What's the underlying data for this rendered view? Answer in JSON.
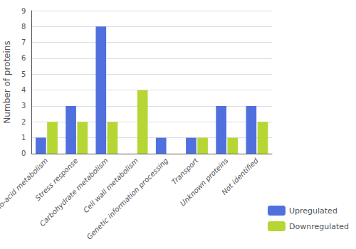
{
  "chart_data": {
    "type": "bar",
    "categories": [
      "Amino-acid metabolism",
      "Stress response",
      "Carbohydrate metabolism",
      "Cell wall metabolism",
      "Genetic information processing",
      "Transport",
      "Unknown proteins",
      "Not identified"
    ],
    "series": [
      {
        "name": "Upregulated",
        "values": [
          1,
          3,
          8,
          0,
          1,
          1,
          3,
          3
        ]
      },
      {
        "name": "Downregulated",
        "values": [
          2,
          2,
          2,
          4,
          0,
          1,
          1,
          2
        ]
      }
    ],
    "ylabel": "Number of proteins",
    "ylim": [
      0,
      9
    ],
    "yticks": [
      0,
      1,
      2,
      3,
      4,
      5,
      6,
      7,
      8,
      9
    ],
    "grid": true,
    "legend": "lower right"
  }
}
